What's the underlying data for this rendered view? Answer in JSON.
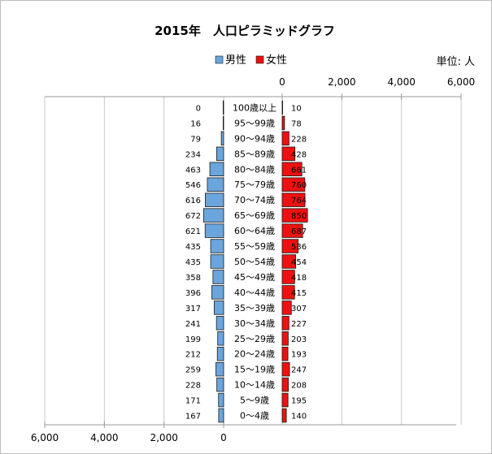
{
  "chart_data": {
    "type": "bar",
    "title": "2015年　人口ピラミッドグラフ",
    "unit_label": "単位: 人",
    "legend": {
      "placement": "top-center"
    },
    "colors": {
      "male": "#6aa6dd",
      "female": "#ee1111",
      "bar_stroke": "#1a1a1a",
      "grid": "#c8c8c8"
    },
    "series": [
      {
        "name": "男性",
        "side": "left",
        "values": [
          0,
          16,
          79,
          234,
          463,
          546,
          616,
          672,
          621,
          435,
          435,
          358,
          396,
          317,
          241,
          199,
          212,
          259,
          228,
          171,
          167
        ]
      },
      {
        "name": "女性",
        "side": "right",
        "values": [
          10,
          78,
          228,
          428,
          661,
          760,
          764,
          850,
          687,
          536,
          454,
          418,
          415,
          307,
          227,
          203,
          193,
          247,
          208,
          195,
          140
        ]
      }
    ],
    "categories": [
      "100歳以上",
      "95～99歳",
      "90～94歳",
      "85～89歳",
      "80～84歳",
      "75～79歳",
      "70～74歳",
      "65～69歳",
      "60～64歳",
      "55～59歳",
      "50～54歳",
      "45～49歳",
      "40～44歳",
      "35～39歳",
      "30～34歳",
      "25～29歳",
      "20～24歳",
      "15～19歳",
      "10～14歳",
      "5～9歳",
      "0～4歳"
    ],
    "top_axis": {
      "ticks": [
        0,
        2000,
        4000,
        6000
      ],
      "tick_labels": [
        "0",
        "2,000",
        "4,000",
        "6,000"
      ]
    },
    "bottom_axis": {
      "ticks": [
        6000,
        4000,
        2000,
        0
      ],
      "tick_labels": [
        "6,000",
        "4,000",
        "2,000",
        "0"
      ]
    },
    "xlim": [
      0,
      6000
    ],
    "grid": true
  }
}
